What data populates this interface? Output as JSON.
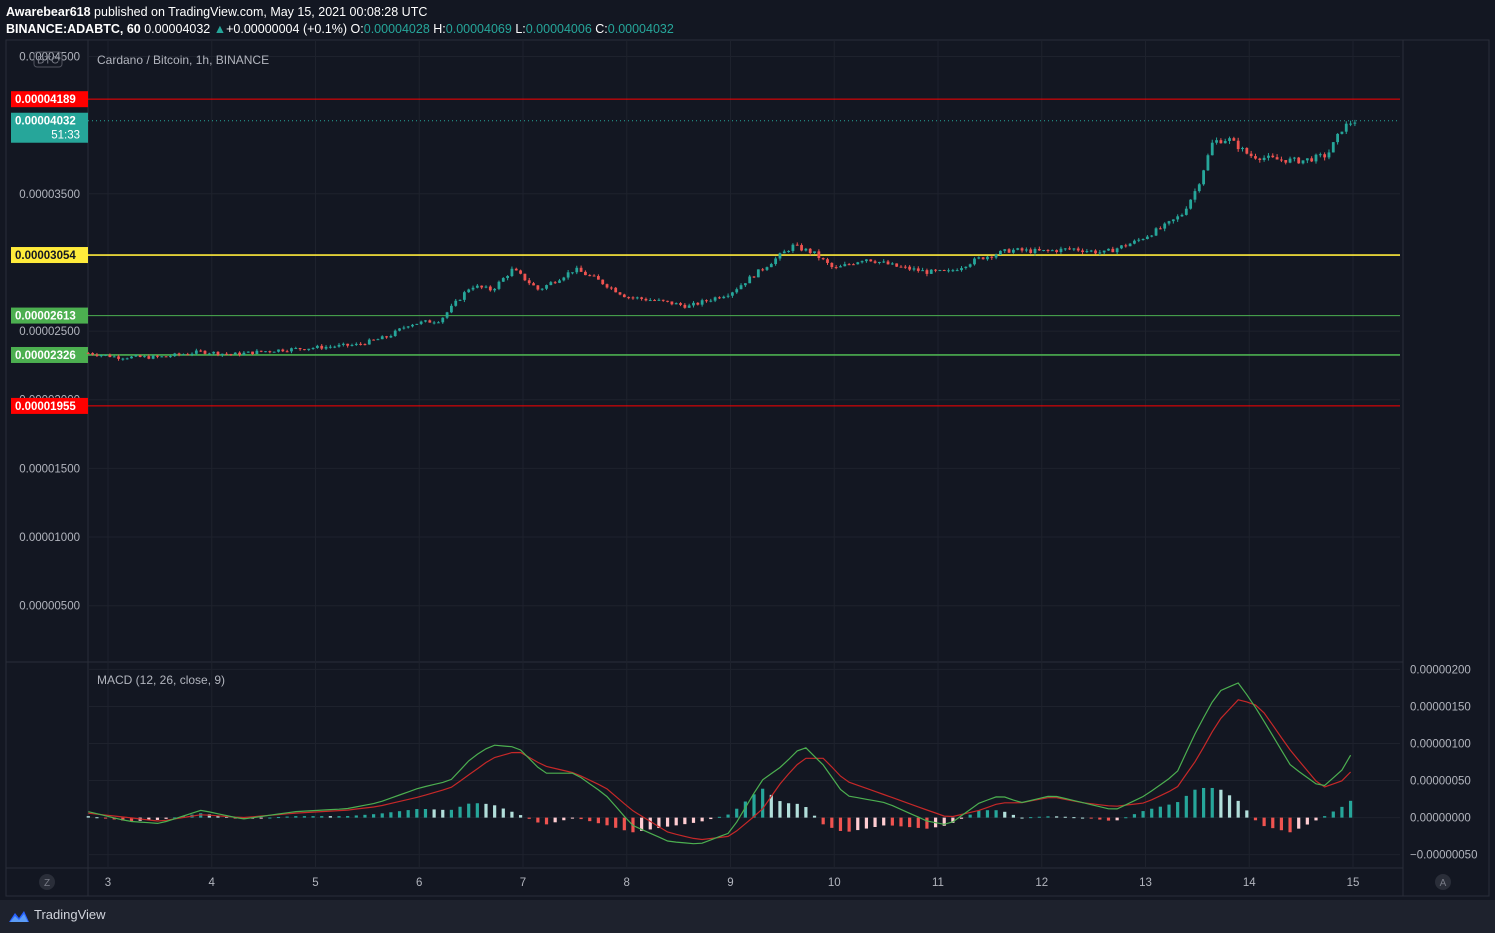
{
  "header": {
    "author": "Awarebear618",
    "published_text": "published on TradingView.com, May 15, 2021 00:08:28 UTC",
    "symbol": "BINANCE:ADABTC, 60",
    "last": "0.00004032",
    "change": "+0.00000004 (+0.1%)",
    "o_label": "O:",
    "o": "0.00004028",
    "h_label": "H:",
    "h": "0.00004069",
    "l_label": "L:",
    "l": "0.00004006",
    "c_label": "C:",
    "c": "0.00004032"
  },
  "footer": {
    "brand": "TradingView"
  },
  "colors": {
    "background": "#131722",
    "up": "#26a69a",
    "down": "#ef5350",
    "red_level": "#ff0000",
    "yellow_level": "#ffeb3b",
    "green_level": "#4caf50",
    "macd_line": "#4caf50",
    "signal_line": "#c62828"
  },
  "chart_data": [
    {
      "type": "candlestick",
      "title": "Cardano / Bitcoin, 1h, BINANCE",
      "currency_badge": "BTC",
      "y_ticks": [
        "0.00004500",
        "0.00003500",
        "0.00002500",
        "0.00002000",
        "0.00001500",
        "0.00001000",
        "0.00000500"
      ],
      "x_ticks": [
        "3",
        "4",
        "5",
        "6",
        "7",
        "8",
        "9",
        "10",
        "11",
        "12",
        "13",
        "14",
        "15"
      ],
      "x_start_day": 2.81,
      "x_end_day": 15.0,
      "ylim": [
        9e-07,
        4.62e-05
      ],
      "price_path": [
        [
          2.81,
          2.34e-05
        ],
        [
          3.1,
          2.31e-05
        ],
        [
          3.5,
          2.31e-05
        ],
        [
          3.9,
          2.35e-05
        ],
        [
          4.2,
          2.33e-05
        ],
        [
          4.6,
          2.36e-05
        ],
        [
          5.0,
          2.38e-05
        ],
        [
          5.4,
          2.4e-05
        ],
        [
          5.7,
          2.46e-05
        ],
        [
          5.9,
          2.55e-05
        ],
        [
          6.2,
          2.58e-05
        ],
        [
          6.5,
          2.83e-05
        ],
        [
          6.7,
          2.8e-05
        ],
        [
          6.9,
          2.95e-05
        ],
        [
          7.15,
          2.8e-05
        ],
        [
          7.5,
          2.95e-05
        ],
        [
          7.7,
          2.88e-05
        ],
        [
          8.0,
          2.75e-05
        ],
        [
          8.3,
          2.72e-05
        ],
        [
          8.6,
          2.68e-05
        ],
        [
          9.0,
          2.78e-05
        ],
        [
          9.3,
          2.95e-05
        ],
        [
          9.6,
          3.12e-05
        ],
        [
          9.8,
          3.07e-05
        ],
        [
          10.0,
          2.95e-05
        ],
        [
          10.3,
          3.03e-05
        ],
        [
          10.6,
          2.97e-05
        ],
        [
          10.9,
          2.93e-05
        ],
        [
          11.1,
          2.93e-05
        ],
        [
          11.4,
          3.03e-05
        ],
        [
          11.7,
          3.09e-05
        ],
        [
          12.0,
          3.08e-05
        ],
        [
          12.3,
          3.1e-05
        ],
        [
          12.6,
          3.07e-05
        ],
        [
          12.9,
          3.15e-05
        ],
        [
          13.2,
          3.27e-05
        ],
        [
          13.35,
          3.35e-05
        ],
        [
          13.5,
          3.55e-05
        ],
        [
          13.65,
          3.88e-05
        ],
        [
          13.8,
          3.9e-05
        ],
        [
          14.0,
          3.78e-05
        ],
        [
          14.25,
          3.75e-05
        ],
        [
          14.5,
          3.74e-05
        ],
        [
          14.75,
          3.78e-05
        ],
        [
          14.9,
          3.98e-05
        ],
        [
          15.0,
          4.03e-05
        ]
      ],
      "levels": [
        {
          "label": "0.00004189",
          "value": 4.189e-05,
          "kind": "red"
        },
        {
          "label": "0.00003054",
          "value": 3.054e-05,
          "kind": "yellow"
        },
        {
          "label": "0.00002613",
          "value": 2.613e-05,
          "kind": "green-thin"
        },
        {
          "label": "0.00002326",
          "value": 2.326e-05,
          "kind": "green"
        },
        {
          "label": "0.00001955",
          "value": 1.955e-05,
          "kind": "red"
        }
      ],
      "last_price": {
        "label": "0.00004032",
        "countdown": "51:33",
        "value": 4.032e-05
      }
    },
    {
      "type": "macd",
      "title": "MACD (12, 26, close, 9)",
      "y_ticks": [
        "0.00000200",
        "0.00000150",
        "0.00000100",
        "0.00000050",
        "0.00000000",
        "−0.00000050"
      ],
      "ylim": [
        -6.8e-07,
        2.1e-06
      ],
      "macd": [
        [
          2.81,
          8e-08
        ],
        [
          3.2,
          -5e-08
        ],
        [
          3.5,
          -8e-08
        ],
        [
          3.9,
          1e-07
        ],
        [
          4.3,
          -2e-08
        ],
        [
          4.8,
          8e-08
        ],
        [
          5.3,
          1.2e-07
        ],
        [
          5.6,
          2e-07
        ],
        [
          6.0,
          4e-07
        ],
        [
          6.3,
          5e-07
        ],
        [
          6.5,
          8e-07
        ],
        [
          6.7,
          9.8e-07
        ],
        [
          6.95,
          9.5e-07
        ],
        [
          7.2,
          6e-07
        ],
        [
          7.5,
          6e-07
        ],
        [
          7.8,
          3e-07
        ],
        [
          8.05,
          -1e-07
        ],
        [
          8.4,
          -3.2e-07
        ],
        [
          8.7,
          -3.6e-07
        ],
        [
          9.0,
          -2e-07
        ],
        [
          9.3,
          5e-07
        ],
        [
          9.5,
          7e-07
        ],
        [
          9.7,
          9.8e-07
        ],
        [
          9.9,
          7e-07
        ],
        [
          10.1,
          3e-07
        ],
        [
          10.5,
          2e-07
        ],
        [
          10.9,
          -5e-08
        ],
        [
          11.1,
          -1e-07
        ],
        [
          11.4,
          2e-07
        ],
        [
          11.6,
          3e-07
        ],
        [
          11.8,
          2e-07
        ],
        [
          12.1,
          3e-07
        ],
        [
          12.4,
          2e-07
        ],
        [
          12.7,
          1e-07
        ],
        [
          13.0,
          3e-07
        ],
        [
          13.3,
          6e-07
        ],
        [
          13.5,
          1.2e-06
        ],
        [
          13.7,
          1.7e-06
        ],
        [
          13.9,
          1.82e-06
        ],
        [
          14.1,
          1.4e-06
        ],
        [
          14.4,
          7e-07
        ],
        [
          14.7,
          4e-07
        ],
        [
          14.9,
          6.5e-07
        ],
        [
          15.0,
          9e-07
        ]
      ],
      "signal": [
        [
          2.81,
          6e-08
        ],
        [
          3.2,
          0.0
        ],
        [
          3.5,
          -5e-08
        ],
        [
          3.9,
          4e-08
        ],
        [
          4.3,
          0.0
        ],
        [
          4.8,
          6e-08
        ],
        [
          5.3,
          1e-07
        ],
        [
          5.6,
          1.5e-07
        ],
        [
          6.0,
          2.8e-07
        ],
        [
          6.3,
          4e-07
        ],
        [
          6.5,
          6e-07
        ],
        [
          6.7,
          8e-07
        ],
        [
          6.95,
          9e-07
        ],
        [
          7.2,
          7e-07
        ],
        [
          7.5,
          6e-07
        ],
        [
          7.8,
          4e-07
        ],
        [
          8.05,
          1e-07
        ],
        [
          8.4,
          -2e-07
        ],
        [
          8.7,
          -3e-07
        ],
        [
          9.0,
          -2.5e-07
        ],
        [
          9.3,
          1e-07
        ],
        [
          9.5,
          5e-07
        ],
        [
          9.7,
          8e-07
        ],
        [
          9.9,
          8e-07
        ],
        [
          10.1,
          5e-07
        ],
        [
          10.5,
          3e-07
        ],
        [
          10.9,
          1e-07
        ],
        [
          11.1,
          0.0
        ],
        [
          11.4,
          1e-07
        ],
        [
          11.6,
          2e-07
        ],
        [
          11.8,
          2e-07
        ],
        [
          12.1,
          2.8e-07
        ],
        [
          12.4,
          2e-07
        ],
        [
          12.7,
          1.5e-07
        ],
        [
          13.0,
          2e-07
        ],
        [
          13.3,
          4e-07
        ],
        [
          13.5,
          8e-07
        ],
        [
          13.7,
          1.3e-06
        ],
        [
          13.9,
          1.6e-06
        ],
        [
          14.1,
          1.5e-06
        ],
        [
          14.4,
          9e-07
        ],
        [
          14.7,
          4e-07
        ],
        [
          14.9,
          5e-07
        ],
        [
          15.0,
          6.5e-07
        ]
      ]
    }
  ]
}
